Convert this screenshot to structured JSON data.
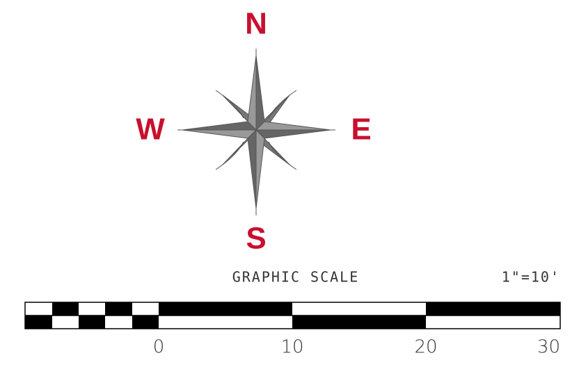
{
  "compass": {
    "north": "N",
    "east": "E",
    "south": "S",
    "west": "W"
  },
  "scale": {
    "title": "GRAPHIC SCALE",
    "ratio": "1\"=10'",
    "labels": [
      "0",
      "10",
      "20",
      "30"
    ]
  }
}
